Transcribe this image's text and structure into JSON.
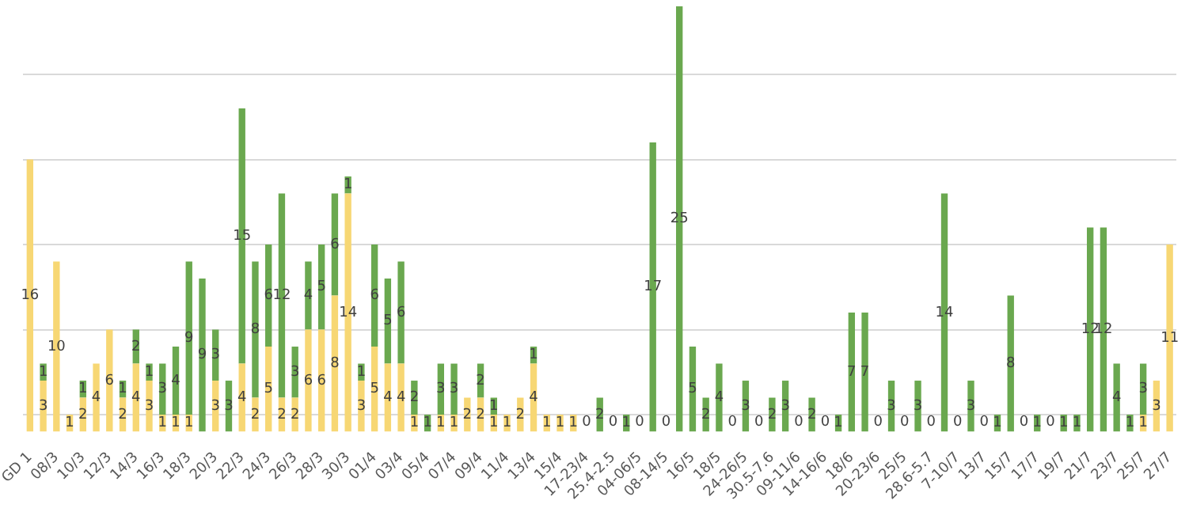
{
  "chart_data": {
    "type": "bar",
    "stacked": true,
    "legend": false,
    "grid": "y",
    "tick_labels": "x",
    "ylim": [
      0,
      25
    ],
    "yticks": [
      {
        "value": 1,
        "label": null
      },
      {
        "value": 6,
        "label": null
      },
      {
        "value": 11,
        "label": null
      },
      {
        "value": 16,
        "label": null
      },
      {
        "value": 21,
        "label": null
      }
    ],
    "categories": [
      "GD 1",
      null,
      "08/3",
      null,
      "10/3",
      null,
      "12/3",
      null,
      "14/3",
      null,
      "16/3",
      null,
      "18/3",
      null,
      "20/3",
      null,
      "22/3",
      null,
      "24/3",
      null,
      "26/3",
      null,
      "28/3",
      null,
      "30/3",
      null,
      "01/4",
      null,
      "03/4",
      null,
      "05/4",
      null,
      "07/4",
      null,
      "09/4",
      null,
      "11/4",
      null,
      "13/4",
      null,
      "15/4",
      null,
      "17-23/4",
      null,
      "25.4-2.5",
      null,
      "04-06/5",
      null,
      "08-14/5",
      null,
      "16/5",
      null,
      "18/5",
      null,
      "24-26/5",
      null,
      "30.5-7.6",
      null,
      "09-11/6",
      null,
      "14-16/6",
      null,
      "18/6",
      null,
      "20-23/6",
      null,
      "25/5",
      null,
      "28.6-5.7",
      null,
      "7-10/7",
      null,
      "13/7",
      null,
      "15/7",
      null,
      "17/7",
      null,
      "19/7",
      null,
      "21/7",
      null,
      "23/7",
      null,
      "25/7",
      null,
      "27/7"
    ],
    "series": [
      {
        "color": "#f7d774",
        "values": [
          16,
          3,
          10,
          1,
          2,
          4,
          6,
          2,
          4,
          3,
          1,
          1,
          1,
          0,
          3,
          0,
          4,
          2,
          5,
          2,
          2,
          6,
          6,
          8,
          14,
          3,
          5,
          4,
          4,
          1,
          0,
          1,
          1,
          2,
          2,
          1,
          1,
          2,
          4,
          1,
          1,
          1,
          0,
          0,
          0,
          0,
          0,
          0,
          0,
          0,
          0,
          0,
          0,
          0,
          0,
          0,
          0,
          0,
          0,
          0,
          0,
          0,
          0,
          0,
          0,
          0,
          0,
          0,
          0,
          0,
          0,
          0,
          0,
          0,
          0,
          0,
          0,
          0,
          0,
          0,
          0,
          0,
          0,
          0,
          1,
          3,
          11
        ],
        "value_labels": [
          "16",
          "3",
          "10",
          "1",
          "2",
          "4",
          "6",
          "2",
          "4",
          "3",
          "1",
          "1",
          "1",
          null,
          "3",
          null,
          "4",
          "2",
          "5",
          "2",
          "2",
          "6",
          "6",
          "8",
          "14",
          "3",
          "5",
          "4",
          "4",
          "1",
          null,
          "1",
          "1",
          "2",
          "2",
          "1",
          "1",
          "2",
          "4",
          "1",
          "1",
          "1",
          null,
          null,
          null,
          null,
          null,
          null,
          null,
          null,
          null,
          null,
          null,
          null,
          null,
          null,
          null,
          null,
          null,
          null,
          null,
          null,
          null,
          null,
          null,
          null,
          null,
          null,
          null,
          null,
          null,
          null,
          null,
          null,
          null,
          null,
          null,
          null,
          null,
          null,
          null,
          null,
          null,
          null,
          "1",
          "3",
          "11"
        ]
      },
      {
        "color": "#6aa84f",
        "values": [
          0,
          1,
          0,
          0,
          1,
          0,
          0,
          1,
          2,
          1,
          3,
          4,
          9,
          9,
          3,
          3,
          15,
          8,
          6,
          12,
          3,
          4,
          5,
          6,
          1,
          1,
          6,
          5,
          6,
          2,
          1,
          3,
          3,
          0,
          2,
          1,
          0,
          0,
          1,
          0,
          0,
          0,
          0,
          2,
          0,
          1,
          0,
          17,
          0,
          25,
          5,
          2,
          4,
          0,
          3,
          0,
          2,
          3,
          0,
          2,
          0,
          1,
          7,
          7,
          0,
          3,
          0,
          3,
          0,
          14,
          0,
          3,
          0,
          1,
          8,
          0,
          1,
          0,
          1,
          1,
          12,
          12,
          4,
          1,
          3,
          0,
          0
        ],
        "value_labels": [
          null,
          "1",
          null,
          null,
          "1",
          null,
          null,
          "1",
          "2",
          "1",
          "3",
          "4",
          "9",
          "9",
          "3",
          "3",
          "15",
          "8",
          "6",
          "12",
          "3",
          "4",
          "5",
          "6",
          "1",
          "1",
          "6",
          "5",
          "6",
          "2",
          "1",
          "3",
          "3",
          null,
          "2",
          "1",
          null,
          null,
          "1",
          null,
          null,
          null,
          "0",
          "2",
          "0",
          "1",
          "0",
          "17",
          "0",
          "25",
          "5",
          "2",
          "4",
          "0",
          "3",
          "0",
          "2",
          "3",
          "0",
          "2",
          "0",
          "1",
          "7",
          "7",
          "0",
          "3",
          "0",
          "3",
          "0",
          "14",
          "0",
          "3",
          "0",
          "1",
          "8",
          "0",
          "1",
          "0",
          "1",
          "1",
          "12",
          "12",
          "4",
          "1",
          "3",
          null,
          null
        ]
      }
    ]
  }
}
